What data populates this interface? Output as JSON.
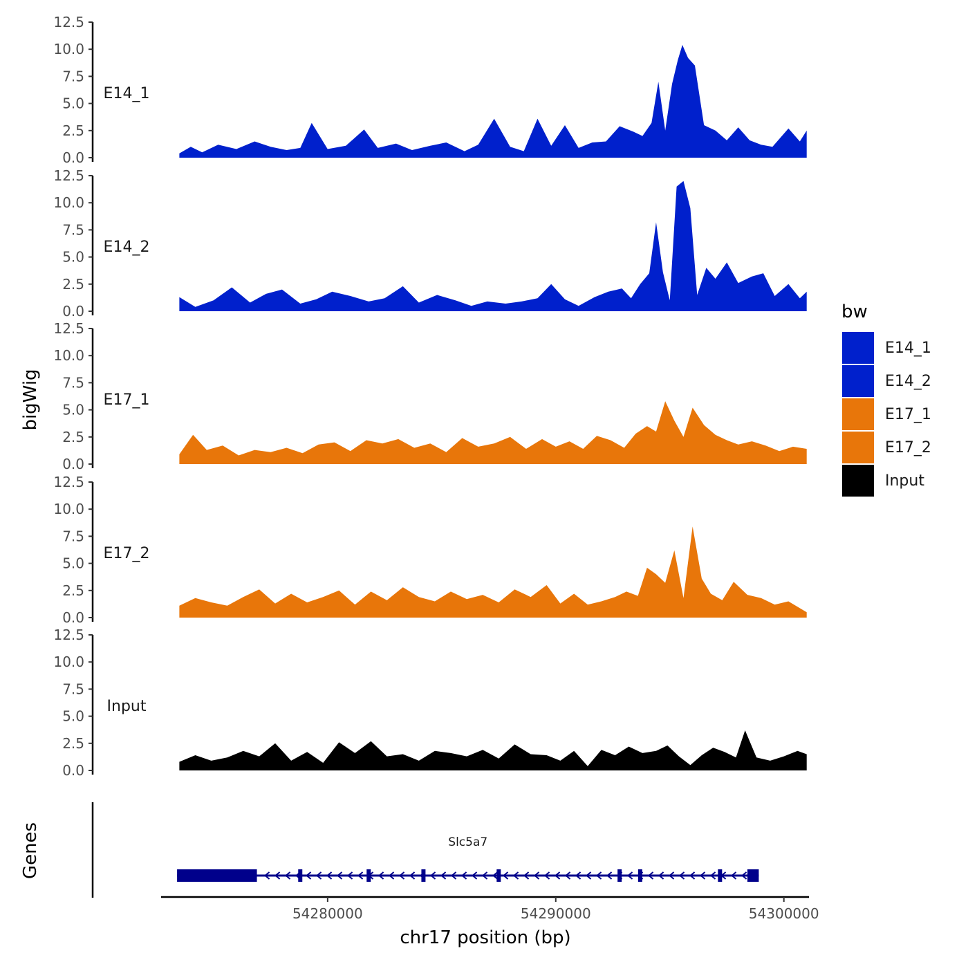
{
  "chart_data": {
    "type": "area",
    "title": "",
    "ylabel": "bigWig",
    "xlabel": "chr17 position (bp)",
    "chromosome": "chr17",
    "xlim": [
      54272700,
      54301100
    ],
    "x_ticks": [
      54280000,
      54290000,
      54300000
    ],
    "x_tick_labels": [
      "54280000",
      "54290000",
      "54300000"
    ],
    "ylim": [
      0,
      12.5
    ],
    "y_ticks": [
      0,
      2.5,
      5,
      7.5,
      10,
      12.5
    ],
    "y_tick_labels": [
      "0.0",
      "2.5",
      "5.0",
      "7.5",
      "10.0",
      "12.5"
    ],
    "legend": {
      "title": "bw",
      "position": "right",
      "entries": [
        {
          "label": "E14_1",
          "color": "#0020CC"
        },
        {
          "label": "E14_2",
          "color": "#0020CC"
        },
        {
          "label": "E17_1",
          "color": "#E8760A"
        },
        {
          "label": "E17_2",
          "color": "#E8760A"
        },
        {
          "label": "Input",
          "color": "#000000"
        }
      ]
    },
    "series": [
      {
        "name": "E14_1",
        "color": "#0020CC",
        "x": [
          54273500,
          54274000,
          54274500,
          54275200,
          54276000,
          54276800,
          54277500,
          54278200,
          54278800,
          54279300,
          54280000,
          54280800,
          54281600,
          54282200,
          54283000,
          54283700,
          54284500,
          54285200,
          54286000,
          54286600,
          54287300,
          54288000,
          54288600,
          54289200,
          54289800,
          54290400,
          54291000,
          54291600,
          54292200,
          54292800,
          54293400,
          54293800,
          54294200,
          54294500,
          54294800,
          54295100,
          54295350,
          54295550,
          54295800,
          54296100,
          54296500,
          54297000,
          54297500,
          54298000,
          54298500,
          54299000,
          54299500,
          54300200,
          54300700,
          54301000
        ],
        "values": [
          0.4,
          1.0,
          0.5,
          1.2,
          0.8,
          1.5,
          1.0,
          0.7,
          0.9,
          3.2,
          0.8,
          1.1,
          2.6,
          0.9,
          1.3,
          0.7,
          1.1,
          1.4,
          0.6,
          1.2,
          3.6,
          1.0,
          0.6,
          3.6,
          1.1,
          3.0,
          0.9,
          1.4,
          1.5,
          2.9,
          2.4,
          2.0,
          3.2,
          7.0,
          2.5,
          6.8,
          9.0,
          10.4,
          9.2,
          8.5,
          3.0,
          2.5,
          1.6,
          2.8,
          1.6,
          1.2,
          1.0,
          2.7,
          1.5,
          2.5
        ]
      },
      {
        "name": "E14_2",
        "color": "#0020CC",
        "x": [
          54273500,
          54274200,
          54275000,
          54275800,
          54276600,
          54277300,
          54278000,
          54278800,
          54279500,
          54280200,
          54281000,
          54281800,
          54282500,
          54283300,
          54284000,
          54284800,
          54285600,
          54286300,
          54287000,
          54287800,
          54288500,
          54289200,
          54289800,
          54290400,
          54291000,
          54291700,
          54292300,
          54292900,
          54293300,
          54293700,
          54294100,
          54294400,
          54294700,
          54295000,
          54295300,
          54295600,
          54295900,
          54296200,
          54296600,
          54297000,
          54297500,
          54298000,
          54298600,
          54299100,
          54299600,
          54300200,
          54300700,
          54301000
        ],
        "values": [
          1.3,
          0.4,
          1.0,
          2.2,
          0.8,
          1.6,
          2.0,
          0.7,
          1.1,
          1.8,
          1.4,
          0.9,
          1.2,
          2.3,
          0.8,
          1.5,
          1.0,
          0.5,
          0.9,
          0.7,
          0.9,
          1.2,
          2.5,
          1.1,
          0.5,
          1.3,
          1.8,
          2.1,
          1.2,
          2.5,
          3.5,
          8.2,
          3.6,
          1.0,
          11.5,
          12.0,
          9.5,
          1.5,
          4.0,
          3.0,
          4.5,
          2.6,
          3.2,
          3.5,
          1.4,
          2.5,
          1.2,
          1.8
        ]
      },
      {
        "name": "E17_1",
        "color": "#E8760A",
        "x": [
          54273500,
          54274100,
          54274700,
          54275400,
          54276100,
          54276800,
          54277500,
          54278200,
          54278900,
          54279600,
          54280300,
          54281000,
          54281700,
          54282400,
          54283100,
          54283800,
          54284500,
          54285200,
          54285900,
          54286600,
          54287300,
          54288000,
          54288700,
          54289400,
          54290000,
          54290600,
          54291200,
          54291800,
          54292400,
          54293000,
          54293500,
          54294000,
          54294400,
          54294800,
          54295200,
          54295600,
          54296000,
          54296500,
          54297000,
          54297500,
          54298000,
          54298600,
          54299200,
          54299800,
          54300400,
          54301000
        ],
        "values": [
          0.9,
          2.7,
          1.3,
          1.7,
          0.8,
          1.3,
          1.1,
          1.5,
          1.0,
          1.8,
          2.0,
          1.2,
          2.2,
          1.9,
          2.3,
          1.5,
          1.9,
          1.1,
          2.4,
          1.6,
          1.9,
          2.5,
          1.4,
          2.3,
          1.6,
          2.1,
          1.4,
          2.6,
          2.2,
          1.5,
          2.8,
          3.5,
          3.0,
          5.8,
          4.0,
          2.5,
          5.2,
          3.6,
          2.7,
          2.2,
          1.8,
          2.1,
          1.7,
          1.2,
          1.6,
          1.4
        ]
      },
      {
        "name": "E17_2",
        "color": "#E8760A",
        "x": [
          54273500,
          54274200,
          54274900,
          54275600,
          54276300,
          54277000,
          54277700,
          54278400,
          54279100,
          54279800,
          54280500,
          54281200,
          54281900,
          54282600,
          54283300,
          54284000,
          54284700,
          54285400,
          54286100,
          54286800,
          54287500,
          54288200,
          54288900,
          54289600,
          54290200,
          54290800,
          54291400,
          54292000,
          54292600,
          54293100,
          54293600,
          54294000,
          54294400,
          54294800,
          54295200,
          54295600,
          54296000,
          54296400,
          54296800,
          54297300,
          54297800,
          54298400,
          54299000,
          54299600,
          54300200,
          54301000
        ],
        "values": [
          1.1,
          1.8,
          1.4,
          1.1,
          1.9,
          2.6,
          1.3,
          2.2,
          1.4,
          1.9,
          2.5,
          1.2,
          2.4,
          1.6,
          2.8,
          1.9,
          1.5,
          2.4,
          1.7,
          2.1,
          1.4,
          2.6,
          1.9,
          3.0,
          1.3,
          2.2,
          1.2,
          1.5,
          1.9,
          2.4,
          2.0,
          4.6,
          4.0,
          3.2,
          6.2,
          1.8,
          8.4,
          3.6,
          2.2,
          1.6,
          3.3,
          2.1,
          1.8,
          1.2,
          1.5,
          0.5
        ]
      },
      {
        "name": "Input",
        "color": "#000000",
        "x": [
          54273500,
          54274200,
          54274900,
          54275600,
          54276300,
          54277000,
          54277700,
          54278400,
          54279100,
          54279800,
          54280500,
          54281200,
          54281900,
          54282600,
          54283300,
          54284000,
          54284700,
          54285400,
          54286100,
          54286800,
          54287500,
          54288200,
          54288900,
          54289600,
          54290200,
          54290800,
          54291400,
          54292000,
          54292600,
          54293200,
          54293800,
          54294400,
          54294900,
          54295400,
          54295900,
          54296400,
          54296900,
          54297400,
          54297900,
          54298300,
          54298800,
          54299400,
          54300000,
          54300600,
          54301000
        ],
        "values": [
          0.8,
          1.4,
          0.9,
          1.2,
          1.8,
          1.3,
          2.5,
          0.9,
          1.7,
          0.7,
          2.6,
          1.6,
          2.7,
          1.3,
          1.5,
          0.9,
          1.8,
          1.6,
          1.3,
          1.9,
          1.1,
          2.4,
          1.5,
          1.4,
          0.9,
          1.8,
          0.4,
          1.9,
          1.4,
          2.2,
          1.6,
          1.8,
          2.3,
          1.3,
          0.5,
          1.4,
          2.1,
          1.7,
          1.2,
          3.7,
          1.2,
          0.9,
          1.3,
          1.8,
          1.5
        ]
      }
    ],
    "gene_track": {
      "ylabel": "Genes",
      "gene": "Slc5a7",
      "strand": "-",
      "color": "#00008B",
      "start": 54273400,
      "end": 54298900,
      "utr": [
        [
          54273400,
          54276900
        ],
        [
          54298400,
          54298900
        ]
      ],
      "exons": [
        54278800,
        54281800,
        54284200,
        54287500,
        54292800,
        54293700,
        54297200
      ]
    }
  }
}
